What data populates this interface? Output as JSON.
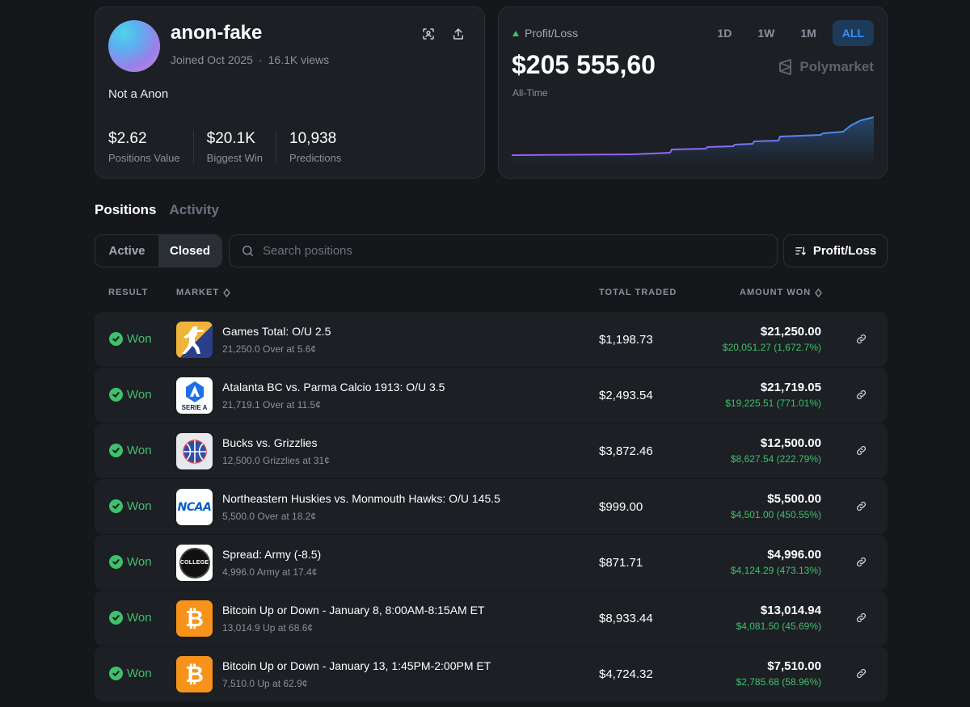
{
  "profile": {
    "username": "anon-fake",
    "joined": "Joined Oct 2025",
    "views": "16.1K views",
    "bio": "Not a Anon",
    "stats": [
      {
        "value": "$2.62",
        "label": "Positions Value"
      },
      {
        "value": "$20.1K",
        "label": "Biggest Win"
      },
      {
        "value": "10,938",
        "label": "Predictions"
      }
    ],
    "icons": [
      "scan-icon",
      "share-icon"
    ]
  },
  "pnl": {
    "label": "Profit/Loss",
    "value": "$205 555,60",
    "period": "All-Time",
    "timeframes": [
      "1D",
      "1W",
      "1M",
      "ALL"
    ],
    "active_timeframe": "ALL",
    "brand": "Polymarket",
    "colors": {
      "line_start": "#9b5cf0",
      "line_end": "#3b8ff0"
    }
  },
  "tabs": {
    "positions": "Positions",
    "activity": "Activity",
    "active": "Positions"
  },
  "filters": {
    "active": "Active",
    "closed": "Closed",
    "selected": "Closed",
    "search_placeholder": "Search positions",
    "sort_label": "Profit/Loss"
  },
  "table": {
    "headers": {
      "result": "RESULT",
      "market": "MARKET",
      "total_traded": "TOTAL TRADED",
      "amount_won": "AMOUNT WON"
    },
    "rows": [
      {
        "result": "Won",
        "logo": "counter-strike",
        "title": "Games Total: O/U 2.5",
        "sub": "21,250.0 Over at 5.6¢",
        "traded": "$1,198.73",
        "won": "$21,250.00",
        "pnl": "$20,051.27 (1,672.7%)"
      },
      {
        "result": "Won",
        "logo": "serie-a",
        "title": "Atalanta BC vs. Parma Calcio 1913: O/U 3.5",
        "sub": "21,719.1 Over at 11.5¢",
        "traded": "$2,493.54",
        "won": "$21,719.05",
        "pnl": "$19,225.51 (771.01%)"
      },
      {
        "result": "Won",
        "logo": "basketball",
        "title": "Bucks vs. Grizzlies",
        "sub": "12,500.0 Grizzlies at 31¢",
        "traded": "$3,872.46",
        "won": "$12,500.00",
        "pnl": "$8,627.54 (222.79%)"
      },
      {
        "result": "Won",
        "logo": "ncaa",
        "title": "Northeastern Huskies vs. Monmouth Hawks: O/U 145.5",
        "sub": "5,500.0 Over at 18.2¢",
        "traded": "$999.00",
        "won": "$5,500.00",
        "pnl": "$4,501.00 (450.55%)"
      },
      {
        "result": "Won",
        "logo": "college-football",
        "title": "Spread: Army (-8.5)",
        "sub": "4,996.0 Army at 17.4¢",
        "traded": "$871.71",
        "won": "$4,996.00",
        "pnl": "$4,124.29 (473.13%)"
      },
      {
        "result": "Won",
        "logo": "bitcoin",
        "title": "Bitcoin Up or Down - January 8, 8:00AM-8:15AM ET",
        "sub": "13,014.9 Up at 68.6¢",
        "traded": "$8,933.44",
        "won": "$13,014.94",
        "pnl": "$4,081.50 (45.69%)"
      },
      {
        "result": "Won",
        "logo": "bitcoin",
        "title": "Bitcoin Up or Down - January 13, 1:45PM-2:00PM ET",
        "sub": "7,510.0 Up at 62.9¢",
        "traded": "$4,724.32",
        "won": "$7,510.00",
        "pnl": "$2,785.68 (58.96%)"
      }
    ]
  },
  "logo_text": {
    "serie_a": "SERIE A",
    "ncaa": "NCAA",
    "college_football": "COLLEGE",
    "bitcoin": "₿"
  }
}
